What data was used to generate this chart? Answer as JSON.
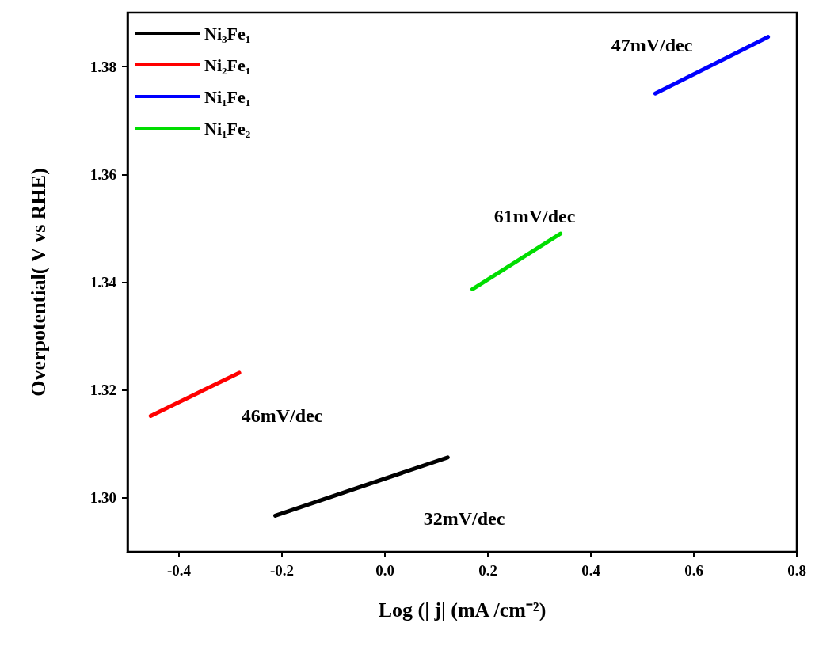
{
  "chart_data": {
    "type": "line",
    "xlabel": "Log (| j| (mA /cm⁻²)",
    "ylabel": "Overpotential( V vs RHE)",
    "xlim": [
      -0.5,
      0.8
    ],
    "xticks": [
      -0.4,
      -0.2,
      {
        "value": 0,
        "label": "0.0"
      },
      0.2,
      0.4,
      0.6,
      0.8
    ],
    "ylim": [
      1.29,
      1.39
    ],
    "yticks": [
      {
        "value": 1.3,
        "label": "1.30"
      },
      1.32,
      1.34,
      1.36,
      1.38
    ],
    "grid": false,
    "legend": "top left",
    "marker": "none",
    "line_style": "solid",
    "series": [
      {
        "name": "Ni₃Fe₁",
        "color": "#000000",
        "x": [
          -0.213,
          0.122
        ],
        "values": [
          1.2967,
          1.3075
        ]
      },
      {
        "name": "Ni₂Fe₁",
        "color": "#ff0000",
        "x": [
          -0.455,
          -0.283
        ],
        "values": [
          1.3152,
          1.3232
        ]
      },
      {
        "name": "Ni₁Fe₁",
        "color": "#0000ff",
        "x": [
          0.525,
          0.744
        ],
        "values": [
          1.375,
          1.3855
        ]
      },
      {
        "name": "Ni₁Fe₂",
        "color": "#00dd00",
        "x": [
          0.17,
          0.341
        ],
        "values": [
          1.3387,
          1.349
        ]
      }
    ],
    "annotations": [
      "47mV/dec",
      "61mV/dec",
      "46mV/dec",
      "32mV/dec"
    ]
  }
}
